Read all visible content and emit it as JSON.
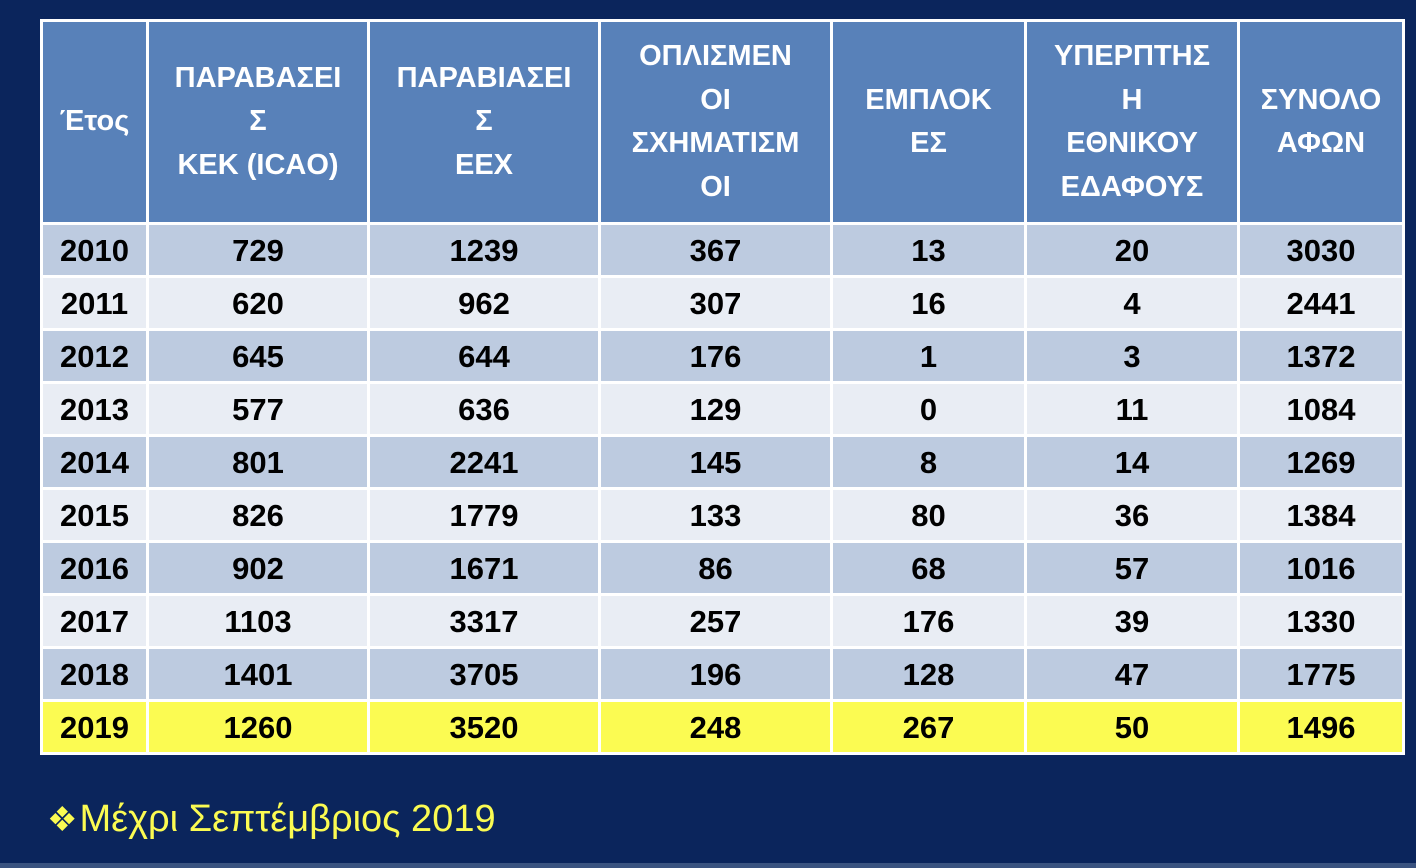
{
  "table": {
    "columns": [
      {
        "label": "Έτος",
        "full_name": "Έτος"
      },
      {
        "label": "ΠΑΡΑΒΑΣΕΙ\nΣ\nΚΕΚ (ICAO)",
        "full_name": "ΠΑΡΑΒΑΣΕΙΣ ΚΕΚ (ICAO)"
      },
      {
        "label": "ΠΑΡΑΒΙΑΣΕΙ\nΣ\nΕΕΧ",
        "full_name": "ΠΑΡΑΒΙΑΣΕΙΣ ΕΕΧ"
      },
      {
        "label": "ΟΠΛΙΣΜΕΝ\nΟΙ\nΣΧΗΜΑΤΙΣΜ\nΟΙ",
        "full_name": "ΟΠΛΙΣΜΕΝΟΙ ΣΧΗΜΑΤΙΣΜΟΙ"
      },
      {
        "label": "ΕΜΠΛΟΚ\nΕΣ",
        "full_name": "ΕΜΠΛΟΚΕΣ"
      },
      {
        "label": "ΥΠΕΡΠΤΗΣ\nΗ\nΕΘΝΙΚΟΥ\nΕΔΑΦΟΥΣ",
        "full_name": "ΥΠΕΡΠΤΗΣΗ ΕΘΝΙΚΟΥ ΕΔΑΦΟΥΣ"
      },
      {
        "label": "ΣΥΝΟΛΟ\nΑΦΩΝ",
        "full_name": "ΣΥΝΟΛΟ ΑΦΩΝ"
      }
    ],
    "rows": [
      {
        "year": "2010",
        "values": [
          "729",
          "1239",
          "367",
          "13",
          "20",
          "3030"
        ],
        "highlight": false
      },
      {
        "year": "2011",
        "values": [
          "620",
          "962",
          "307",
          "16",
          "4",
          "2441"
        ],
        "highlight": false
      },
      {
        "year": "2012",
        "values": [
          "645",
          "644",
          "176",
          "1",
          "3",
          "1372"
        ],
        "highlight": false
      },
      {
        "year": "2013",
        "values": [
          "577",
          "636",
          "129",
          "0",
          "11",
          "1084"
        ],
        "highlight": false
      },
      {
        "year": "2014",
        "values": [
          "801",
          "2241",
          "145",
          "8",
          "14",
          "1269"
        ],
        "highlight": false
      },
      {
        "year": "2015",
        "values": [
          "826",
          "1779",
          "133",
          "80",
          "36",
          "1384"
        ],
        "highlight": false
      },
      {
        "year": "2016",
        "values": [
          "902",
          "1671",
          "86",
          "68",
          "57",
          "1016"
        ],
        "highlight": false
      },
      {
        "year": "2017",
        "values": [
          "1103",
          "3317",
          "257",
          "176",
          "39",
          "1330"
        ],
        "highlight": false
      },
      {
        "year": "2018",
        "values": [
          "1401",
          "3705",
          "196",
          "128",
          "47",
          "1775"
        ],
        "highlight": false
      },
      {
        "year": "2019",
        "values": [
          "1260",
          "3520",
          "248",
          "267",
          "50",
          "1496"
        ],
        "highlight": true
      }
    ]
  },
  "chart_data": {
    "type": "table",
    "columns": [
      "Έτος",
      "ΠΑΡΑΒΑΣΕΙΣ ΚΕΚ (ICAO)",
      "ΠΑΡΑΒΙΑΣΕΙΣ ΕΕΧ",
      "ΟΠΛΙΣΜΕΝΟΙ ΣΧΗΜΑΤΙΣΜΟΙ",
      "ΕΜΠΛΟΚΕΣ",
      "ΥΠΕΡΠΤΗΣΗ ΕΘΝΙΚΟΥ ΕΔΑΦΟΥΣ",
      "ΣΥΝΟΛΟ ΑΦΩΝ"
    ],
    "rows": [
      [
        2010,
        729,
        1239,
        367,
        13,
        20,
        3030
      ],
      [
        2011,
        620,
        962,
        307,
        16,
        4,
        2441
      ],
      [
        2012,
        645,
        644,
        176,
        1,
        3,
        1372
      ],
      [
        2013,
        577,
        636,
        129,
        0,
        11,
        1084
      ],
      [
        2014,
        801,
        2241,
        145,
        8,
        14,
        1269
      ],
      [
        2015,
        826,
        1779,
        133,
        80,
        36,
        1384
      ],
      [
        2016,
        902,
        1671,
        86,
        68,
        57,
        1016
      ],
      [
        2017,
        1103,
        3317,
        257,
        176,
        39,
        1330
      ],
      [
        2018,
        1401,
        3705,
        196,
        128,
        47,
        1775
      ],
      [
        2019,
        1260,
        3520,
        248,
        267,
        50,
        1496
      ]
    ],
    "highlighted_row_year": 2019
  },
  "footnote": {
    "bullet": "❖",
    "text": "Μέχρι Σεπτέμβριος 2019"
  },
  "colors": {
    "background": "#0b255c",
    "header_bg": "#5881b9",
    "row_dark": "#bdcbe0",
    "row_light": "#e9edf4",
    "highlight_row": "#fbfb52",
    "border": "#ffffff",
    "header_text": "#ffffff",
    "cell_text": "#000000",
    "footnote_text": "#fbfb52",
    "bottom_strip": "#3a5380"
  }
}
